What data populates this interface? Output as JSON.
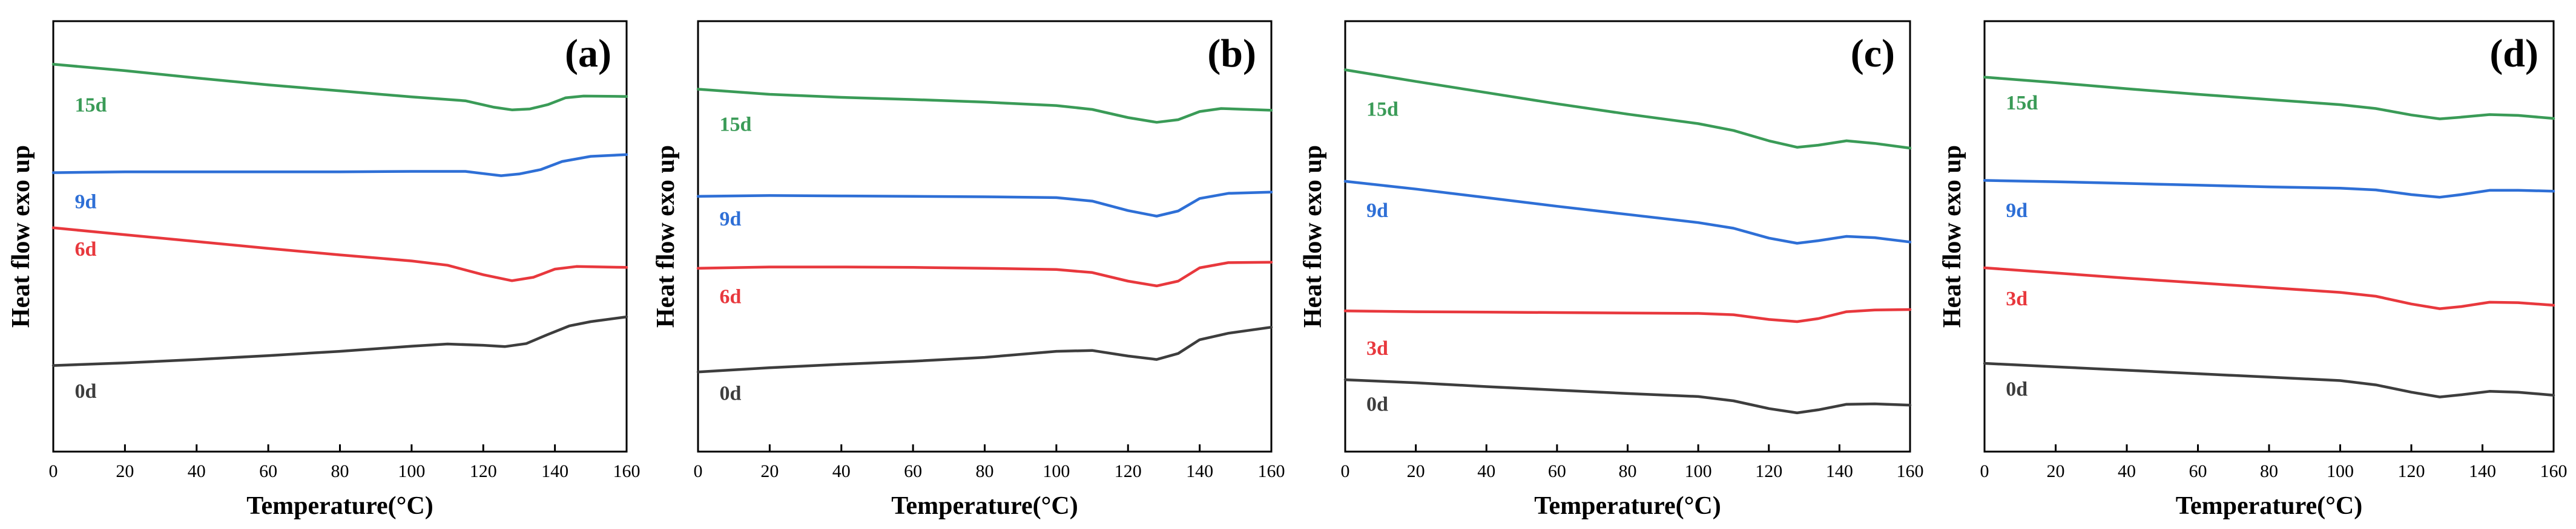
{
  "chart_data": [
    {
      "type": "line",
      "panel_label": "(a)",
      "xlabel": "Temperature(°C)",
      "ylabel": "Heat flow exo up",
      "xlim": [
        0,
        160
      ],
      "ylim": [
        0,
        1
      ],
      "xticks": [
        0,
        20,
        40,
        60,
        80,
        100,
        120,
        140,
        160
      ],
      "y_tick_labels": false,
      "grid": false,
      "series": [
        {
          "name": "15d",
          "color": "#3a9b57",
          "label_pos": [
            6,
            0.79
          ],
          "points": [
            [
              0,
              0.9
            ],
            [
              20,
              0.885
            ],
            [
              40,
              0.868
            ],
            [
              60,
              0.852
            ],
            [
              80,
              0.838
            ],
            [
              100,
              0.824
            ],
            [
              115,
              0.815
            ],
            [
              123,
              0.8
            ],
            [
              128,
              0.794
            ],
            [
              133,
              0.796
            ],
            [
              138,
              0.806
            ],
            [
              143,
              0.822
            ],
            [
              148,
              0.826
            ],
            [
              160,
              0.825
            ]
          ]
        },
        {
          "name": "9d",
          "color": "#2e6fd6",
          "label_pos": [
            6,
            0.565
          ],
          "points": [
            [
              0,
              0.648
            ],
            [
              20,
              0.65
            ],
            [
              40,
              0.65
            ],
            [
              60,
              0.65
            ],
            [
              80,
              0.65
            ],
            [
              100,
              0.651
            ],
            [
              115,
              0.651
            ],
            [
              121,
              0.645
            ],
            [
              125,
              0.641
            ],
            [
              130,
              0.645
            ],
            [
              136,
              0.655
            ],
            [
              142,
              0.674
            ],
            [
              150,
              0.686
            ],
            [
              160,
              0.69
            ]
          ]
        },
        {
          "name": "6d",
          "color": "#e8383d",
          "label_pos": [
            6,
            0.455
          ],
          "points": [
            [
              0,
              0.52
            ],
            [
              20,
              0.504
            ],
            [
              40,
              0.488
            ],
            [
              60,
              0.472
            ],
            [
              80,
              0.457
            ],
            [
              100,
              0.443
            ],
            [
              110,
              0.433
            ],
            [
              120,
              0.411
            ],
            [
              128,
              0.397
            ],
            [
              134,
              0.405
            ],
            [
              140,
              0.424
            ],
            [
              146,
              0.43
            ],
            [
              160,
              0.428
            ]
          ]
        },
        {
          "name": "0d",
          "color": "#3d3d3d",
          "label_pos": [
            6,
            0.125
          ],
          "points": [
            [
              0,
              0.2
            ],
            [
              20,
              0.206
            ],
            [
              40,
              0.214
            ],
            [
              60,
              0.223
            ],
            [
              80,
              0.233
            ],
            [
              100,
              0.245
            ],
            [
              110,
              0.25
            ],
            [
              120,
              0.247
            ],
            [
              126,
              0.244
            ],
            [
              132,
              0.251
            ],
            [
              138,
              0.272
            ],
            [
              144,
              0.292
            ],
            [
              150,
              0.302
            ],
            [
              160,
              0.313
            ]
          ]
        }
      ]
    },
    {
      "type": "line",
      "panel_label": "(b)",
      "xlabel": "Temperature(°C)",
      "ylabel": "Heat flow exo up",
      "xlim": [
        0,
        160
      ],
      "ylim": [
        0,
        1
      ],
      "xticks": [
        0,
        20,
        40,
        60,
        80,
        100,
        120,
        140,
        160
      ],
      "y_tick_labels": false,
      "grid": false,
      "series": [
        {
          "name": "15d",
          "color": "#3a9b57",
          "label_pos": [
            6,
            0.745
          ],
          "points": [
            [
              0,
              0.842
            ],
            [
              20,
              0.83
            ],
            [
              40,
              0.823
            ],
            [
              60,
              0.818
            ],
            [
              80,
              0.812
            ],
            [
              100,
              0.804
            ],
            [
              110,
              0.795
            ],
            [
              120,
              0.776
            ],
            [
              128,
              0.765
            ],
            [
              134,
              0.771
            ],
            [
              140,
              0.79
            ],
            [
              146,
              0.797
            ],
            [
              160,
              0.793
            ]
          ]
        },
        {
          "name": "9d",
          "color": "#2e6fd6",
          "label_pos": [
            6,
            0.525
          ],
          "points": [
            [
              0,
              0.593
            ],
            [
              20,
              0.595
            ],
            [
              40,
              0.594
            ],
            [
              60,
              0.593
            ],
            [
              80,
              0.592
            ],
            [
              100,
              0.59
            ],
            [
              110,
              0.582
            ],
            [
              120,
              0.56
            ],
            [
              128,
              0.547
            ],
            [
              134,
              0.559
            ],
            [
              140,
              0.588
            ],
            [
              148,
              0.6
            ],
            [
              160,
              0.603
            ]
          ]
        },
        {
          "name": "6d",
          "color": "#e8383d",
          "label_pos": [
            6,
            0.345
          ],
          "points": [
            [
              0,
              0.426
            ],
            [
              20,
              0.429
            ],
            [
              40,
              0.429
            ],
            [
              60,
              0.428
            ],
            [
              80,
              0.426
            ],
            [
              100,
              0.423
            ],
            [
              110,
              0.416
            ],
            [
              120,
              0.396
            ],
            [
              128,
              0.385
            ],
            [
              134,
              0.396
            ],
            [
              140,
              0.427
            ],
            [
              148,
              0.439
            ],
            [
              160,
              0.44
            ]
          ]
        },
        {
          "name": "0d",
          "color": "#3d3d3d",
          "label_pos": [
            6,
            0.12
          ],
          "points": [
            [
              0,
              0.185
            ],
            [
              20,
              0.195
            ],
            [
              40,
              0.203
            ],
            [
              60,
              0.21
            ],
            [
              80,
              0.219
            ],
            [
              100,
              0.233
            ],
            [
              110,
              0.235
            ],
            [
              120,
              0.222
            ],
            [
              128,
              0.214
            ],
            [
              134,
              0.228
            ],
            [
              140,
              0.26
            ],
            [
              148,
              0.275
            ],
            [
              160,
              0.289
            ]
          ]
        }
      ]
    },
    {
      "type": "line",
      "panel_label": "(c)",
      "xlabel": "Temperature(°C)",
      "ylabel": "Heat flow exo up",
      "xlim": [
        0,
        160
      ],
      "ylim": [
        0,
        1
      ],
      "xticks": [
        0,
        20,
        40,
        60,
        80,
        100,
        120,
        140,
        160
      ],
      "y_tick_labels": false,
      "grid": false,
      "series": [
        {
          "name": "15d",
          "color": "#3a9b57",
          "label_pos": [
            6,
            0.78
          ],
          "points": [
            [
              0,
              0.887
            ],
            [
              20,
              0.86
            ],
            [
              40,
              0.834
            ],
            [
              60,
              0.808
            ],
            [
              80,
              0.784
            ],
            [
              100,
              0.762
            ],
            [
              110,
              0.746
            ],
            [
              120,
              0.722
            ],
            [
              128,
              0.707
            ],
            [
              134,
              0.712
            ],
            [
              142,
              0.722
            ],
            [
              150,
              0.716
            ],
            [
              160,
              0.705
            ]
          ]
        },
        {
          "name": "9d",
          "color": "#2e6fd6",
          "label_pos": [
            6,
            0.545
          ],
          "points": [
            [
              0,
              0.628
            ],
            [
              20,
              0.61
            ],
            [
              40,
              0.59
            ],
            [
              60,
              0.57
            ],
            [
              80,
              0.551
            ],
            [
              100,
              0.532
            ],
            [
              110,
              0.519
            ],
            [
              120,
              0.496
            ],
            [
              128,
              0.484
            ],
            [
              134,
              0.49
            ],
            [
              142,
              0.5
            ],
            [
              150,
              0.497
            ],
            [
              160,
              0.487
            ]
          ]
        },
        {
          "name": "3d",
          "color": "#e8383d",
          "label_pos": [
            6,
            0.225
          ],
          "points": [
            [
              0,
              0.327
            ],
            [
              20,
              0.325
            ],
            [
              40,
              0.324
            ],
            [
              60,
              0.323
            ],
            [
              80,
              0.322
            ],
            [
              100,
              0.321
            ],
            [
              110,
              0.318
            ],
            [
              120,
              0.307
            ],
            [
              128,
              0.302
            ],
            [
              134,
              0.309
            ],
            [
              142,
              0.325
            ],
            [
              150,
              0.329
            ],
            [
              160,
              0.33
            ]
          ]
        },
        {
          "name": "0d",
          "color": "#3d3d3d",
          "label_pos": [
            6,
            0.095
          ],
          "points": [
            [
              0,
              0.167
            ],
            [
              20,
              0.16
            ],
            [
              40,
              0.151
            ],
            [
              60,
              0.143
            ],
            [
              80,
              0.135
            ],
            [
              100,
              0.128
            ],
            [
              110,
              0.118
            ],
            [
              120,
              0.1
            ],
            [
              128,
              0.09
            ],
            [
              134,
              0.097
            ],
            [
              142,
              0.11
            ],
            [
              150,
              0.111
            ],
            [
              160,
              0.108
            ]
          ]
        }
      ]
    },
    {
      "type": "line",
      "panel_label": "(d)",
      "xlabel": "Temperature(°C)",
      "ylabel": "Heat flow exo up",
      "xlim": [
        0,
        160
      ],
      "ylim": [
        0,
        1
      ],
      "xticks": [
        0,
        20,
        40,
        60,
        80,
        100,
        120,
        140,
        160
      ],
      "y_tick_labels": false,
      "grid": false,
      "series": [
        {
          "name": "15d",
          "color": "#3a9b57",
          "label_pos": [
            6,
            0.795
          ],
          "points": [
            [
              0,
              0.87
            ],
            [
              20,
              0.857
            ],
            [
              40,
              0.843
            ],
            [
              60,
              0.83
            ],
            [
              80,
              0.818
            ],
            [
              100,
              0.806
            ],
            [
              110,
              0.797
            ],
            [
              120,
              0.782
            ],
            [
              128,
              0.773
            ],
            [
              134,
              0.777
            ],
            [
              142,
              0.783
            ],
            [
              150,
              0.781
            ],
            [
              160,
              0.774
            ]
          ]
        },
        {
          "name": "9d",
          "color": "#2e6fd6",
          "label_pos": [
            6,
            0.545
          ],
          "points": [
            [
              0,
              0.63
            ],
            [
              20,
              0.627
            ],
            [
              40,
              0.623
            ],
            [
              60,
              0.619
            ],
            [
              80,
              0.615
            ],
            [
              100,
              0.612
            ],
            [
              110,
              0.608
            ],
            [
              120,
              0.597
            ],
            [
              128,
              0.591
            ],
            [
              134,
              0.597
            ],
            [
              142,
              0.607
            ],
            [
              150,
              0.607
            ],
            [
              160,
              0.605
            ]
          ]
        },
        {
          "name": "3d",
          "color": "#e8383d",
          "label_pos": [
            6,
            0.34
          ],
          "points": [
            [
              0,
              0.427
            ],
            [
              20,
              0.415
            ],
            [
              40,
              0.403
            ],
            [
              60,
              0.392
            ],
            [
              80,
              0.381
            ],
            [
              100,
              0.37
            ],
            [
              110,
              0.361
            ],
            [
              120,
              0.343
            ],
            [
              128,
              0.332
            ],
            [
              134,
              0.337
            ],
            [
              142,
              0.347
            ],
            [
              150,
              0.346
            ],
            [
              160,
              0.34
            ]
          ]
        },
        {
          "name": "0d",
          "color": "#3d3d3d",
          "label_pos": [
            6,
            0.13
          ],
          "points": [
            [
              0,
              0.205
            ],
            [
              20,
              0.197
            ],
            [
              40,
              0.189
            ],
            [
              60,
              0.181
            ],
            [
              80,
              0.173
            ],
            [
              100,
              0.165
            ],
            [
              110,
              0.155
            ],
            [
              120,
              0.138
            ],
            [
              128,
              0.127
            ],
            [
              134,
              0.132
            ],
            [
              142,
              0.14
            ],
            [
              150,
              0.138
            ],
            [
              160,
              0.131
            ]
          ]
        }
      ]
    }
  ]
}
